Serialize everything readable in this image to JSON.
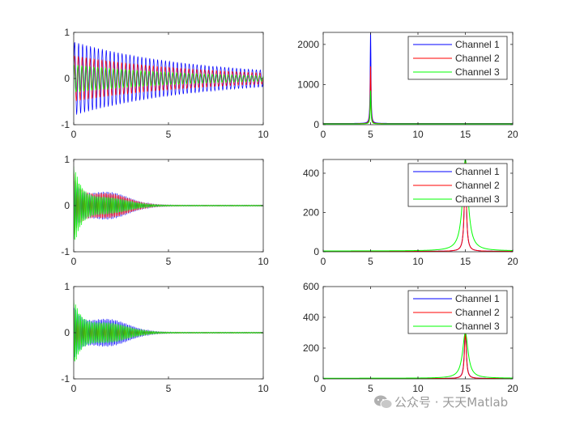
{
  "watermark": {
    "icon": "wechat-icon",
    "text": "公众号 · 天天Matlab"
  },
  "chart_data": [
    {
      "type": "line",
      "panel": "time-domain-1",
      "xlim": [
        0,
        10
      ],
      "ylim": [
        -1,
        1
      ],
      "xticks": [
        0,
        5,
        10
      ],
      "yticks": [
        -1,
        0,
        1
      ],
      "xlabel": "",
      "ylabel": "",
      "series": [
        {
          "color": "#0000ff",
          "envelope_start": 0.8,
          "envelope_end": 0.18,
          "freq_hz": 5
        },
        {
          "color": "#ff0000",
          "envelope_start": 0.5,
          "envelope_end": 0.12,
          "freq_hz": 5
        },
        {
          "color": "#00ff00",
          "envelope_start": 0.3,
          "envelope_end": 0.06,
          "freq_hz": 5
        }
      ]
    },
    {
      "type": "line",
      "panel": "spectrum-1",
      "xlim": [
        0,
        20
      ],
      "ylim": [
        0,
        2300
      ],
      "xticks": [
        0,
        5,
        10,
        15,
        20
      ],
      "yticks": [
        0,
        1000,
        2000
      ],
      "legend": {
        "location": "top-right",
        "entries": [
          "Channel 1",
          "Channel 2",
          "Channel 3"
        ]
      },
      "series": [
        {
          "name": "Channel 1",
          "color": "#0000ff",
          "peak_x": 5,
          "peak_y": 2300,
          "base": 30
        },
        {
          "name": "Channel 2",
          "color": "#ff0000",
          "peak_x": 5,
          "peak_y": 1450,
          "base": 25
        },
        {
          "name": "Channel 3",
          "color": "#00ff00",
          "peak_x": 5,
          "peak_y": 850,
          "base": 20
        }
      ]
    },
    {
      "type": "line",
      "panel": "time-domain-2",
      "xlim": [
        0,
        10
      ],
      "ylim": [
        -1,
        1
      ],
      "xticks": [
        0,
        5,
        10
      ],
      "yticks": [
        -1,
        0,
        1
      ],
      "series": [
        {
          "color": "#0000ff",
          "envelope_start": 0.6,
          "bulge": 0.28,
          "freq_hz": 15
        },
        {
          "color": "#ff0000",
          "envelope_start": 0.7,
          "bulge": 0.25,
          "freq_hz": 15
        },
        {
          "color": "#00ff00",
          "envelope_start": 0.9,
          "bulge": 0.16,
          "freq_hz": 15
        }
      ]
    },
    {
      "type": "line",
      "panel": "spectrum-2",
      "xlim": [
        0,
        20
      ],
      "ylim": [
        0,
        470
      ],
      "xticks": [
        0,
        5,
        10,
        15,
        20
      ],
      "yticks": [
        0,
        200,
        400
      ],
      "legend": {
        "location": "top-right",
        "entries": [
          "Channel 1",
          "Channel 2",
          "Channel 3"
        ]
      },
      "series": [
        {
          "name": "Channel 1",
          "color": "#0000ff",
          "peak_x": 15,
          "peak_y": 470,
          "base": 2
        },
        {
          "name": "Channel 2",
          "color": "#ff0000",
          "peak_x": 15,
          "peak_y": 470,
          "base": 2
        },
        {
          "name": "Channel 3",
          "color": "#00ff00",
          "peak_x": 15,
          "peak_y": 470,
          "base": 4
        }
      ]
    },
    {
      "type": "line",
      "panel": "time-domain-3",
      "xlim": [
        0,
        10
      ],
      "ylim": [
        -1,
        1
      ],
      "xticks": [
        0,
        5,
        10
      ],
      "yticks": [
        -1,
        0,
        1
      ],
      "series": [
        {
          "color": "#0000ff",
          "envelope_start": 0.6,
          "bulge": 0.28,
          "freq_hz": 15
        },
        {
          "color": "#ff0000",
          "envelope_start": 0.5,
          "bulge": 0.18,
          "freq_hz": 15
        },
        {
          "color": "#00ff00",
          "envelope_start": 0.75,
          "bulge": 0.2,
          "freq_hz": 15
        }
      ]
    },
    {
      "type": "line",
      "panel": "spectrum-3",
      "xlim": [
        0,
        20
      ],
      "ylim": [
        0,
        600
      ],
      "xticks": [
        0,
        5,
        10,
        15,
        20
      ],
      "yticks": [
        0,
        200,
        400,
        600
      ],
      "legend": {
        "location": "top-right",
        "entries": [
          "Channel 1",
          "Channel 2",
          "Channel 3"
        ]
      },
      "series": [
        {
          "name": "Channel 1",
          "color": "#0000ff",
          "peak_x": 15,
          "peak_y": 330,
          "base": 2
        },
        {
          "name": "Channel 2",
          "color": "#ff0000",
          "peak_x": 15,
          "peak_y": 300,
          "base": 2
        },
        {
          "name": "Channel 3",
          "color": "#00ff00",
          "peak_x": 15,
          "peak_y": 300,
          "base": 4
        }
      ]
    }
  ]
}
